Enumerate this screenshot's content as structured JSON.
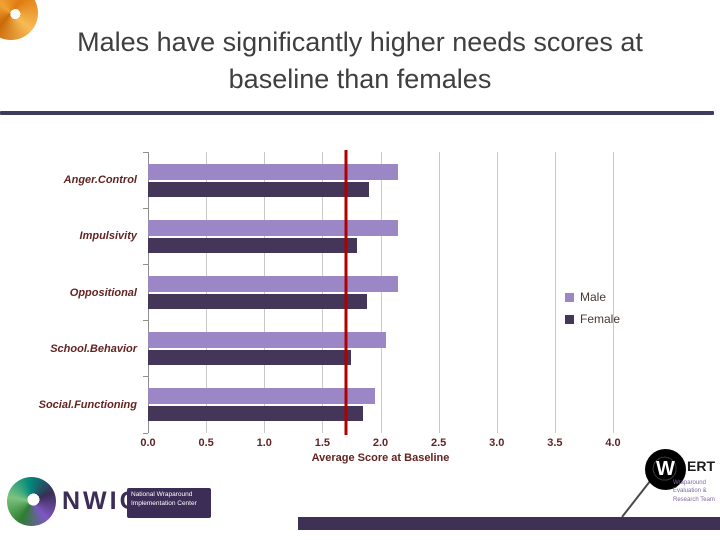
{
  "slide": {
    "title": "Males have significantly higher needs scores at baseline than females"
  },
  "chart_data": {
    "type": "bar",
    "orientation": "horizontal",
    "title": "",
    "categories": [
      "Anger.Control",
      "Impulsivity",
      "Oppositional",
      "School.Behavior",
      "Social.Functioning"
    ],
    "series": [
      {
        "name": "Male",
        "color": "#9c87c6",
        "values": [
          2.15,
          2.15,
          2.15,
          2.05,
          1.95
        ]
      },
      {
        "name": "Female",
        "color": "#443658",
        "values": [
          1.9,
          1.8,
          1.88,
          1.75,
          1.85
        ]
      }
    ],
    "xlabel": "Average Score at Baseline",
    "xlim": [
      0,
      4
    ],
    "xticks": [
      0,
      0.5,
      1,
      1.5,
      2,
      2.5,
      3,
      3.5,
      4
    ],
    "reference_line": {
      "value": 1.7,
      "color": "#b00000"
    },
    "grid": true,
    "legend_position": "right-inside"
  },
  "footer": {
    "nwic_acronym": "NWIC",
    "nwic_caption": "National Wraparound Implementation Center",
    "wert_w": "W",
    "wert_name": "ERT",
    "wert_caption": "Wraparound Evaluation & Research Team"
  },
  "colors": {
    "male": "#9c87c6",
    "female": "#443658",
    "reference": "#b00000",
    "accent_purple": "#3e3155",
    "label_maroon": "#632423"
  }
}
